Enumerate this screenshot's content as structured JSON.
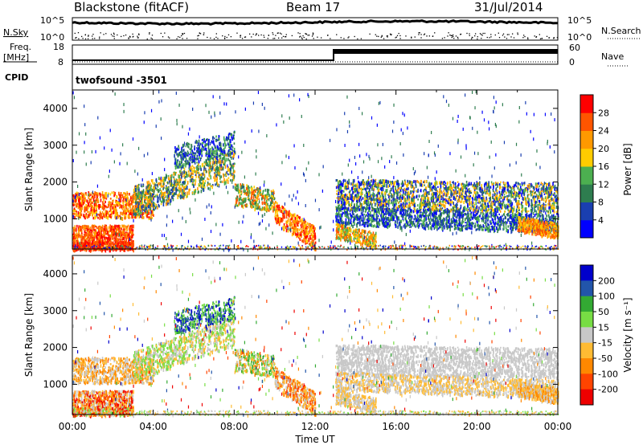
{
  "header": {
    "station": "Blackstone (fitACF)",
    "beam": "Beam 17",
    "date": "31/Jul/2014"
  },
  "summary": {
    "nsky_label": "N.Sky",
    "nsearch_label": "N.Search",
    "freq_label_line1": "Freq.",
    "freq_label_line2": "[MHz]",
    "nave_label": "Nave",
    "cpid_label": "CPID",
    "cpid_value": "twofsound  -3501",
    "noise_ticks": [
      "10^5",
      "10^0"
    ],
    "freq_ticks": [
      "18",
      "8"
    ],
    "nave_ticks": [
      "60",
      "0"
    ]
  },
  "chart_data": [
    {
      "type": "heatmap",
      "title": "",
      "xlabel": "",
      "ylabel": "Slant Range [km]",
      "xlim": [
        "00:00",
        "24:00"
      ],
      "ylim": [
        180,
        4500
      ],
      "yticks": [
        "1000",
        "2000",
        "3000",
        "4000"
      ],
      "colorbar": {
        "label": "Power [dB]",
        "ticks": [
          "4",
          "8",
          "12",
          "16",
          "20",
          "24",
          "28"
        ],
        "colors": [
          "#0000ff",
          "#1a3fb0",
          "#2e7d4f",
          "#4caf50",
          "#ffcc00",
          "#ff9900",
          "#ff5500",
          "#ff0000"
        ]
      }
    },
    {
      "type": "heatmap",
      "title": "",
      "xlabel": "Time UT",
      "ylabel": "Slant Range [km]",
      "xlim": [
        "00:00",
        "24:00"
      ],
      "ylim": [
        180,
        4500
      ],
      "xticks": [
        "00:00",
        "04:00",
        "08:00",
        "12:00",
        "16:00",
        "20:00",
        "00:00"
      ],
      "yticks": [
        "1000",
        "2000",
        "3000",
        "4000"
      ],
      "colorbar": {
        "label": "Velocity [m s⁻¹]",
        "ticks": [
          "200",
          "100",
          "50",
          "15",
          "-15",
          "-50",
          "-100",
          "-200"
        ],
        "colors": [
          "#0000cc",
          "#2255aa",
          "#33aa33",
          "#77dd44",
          "#c8c8c8",
          "#ffbb33",
          "#ff8800",
          "#ff4400",
          "#ee0000"
        ]
      }
    }
  ]
}
